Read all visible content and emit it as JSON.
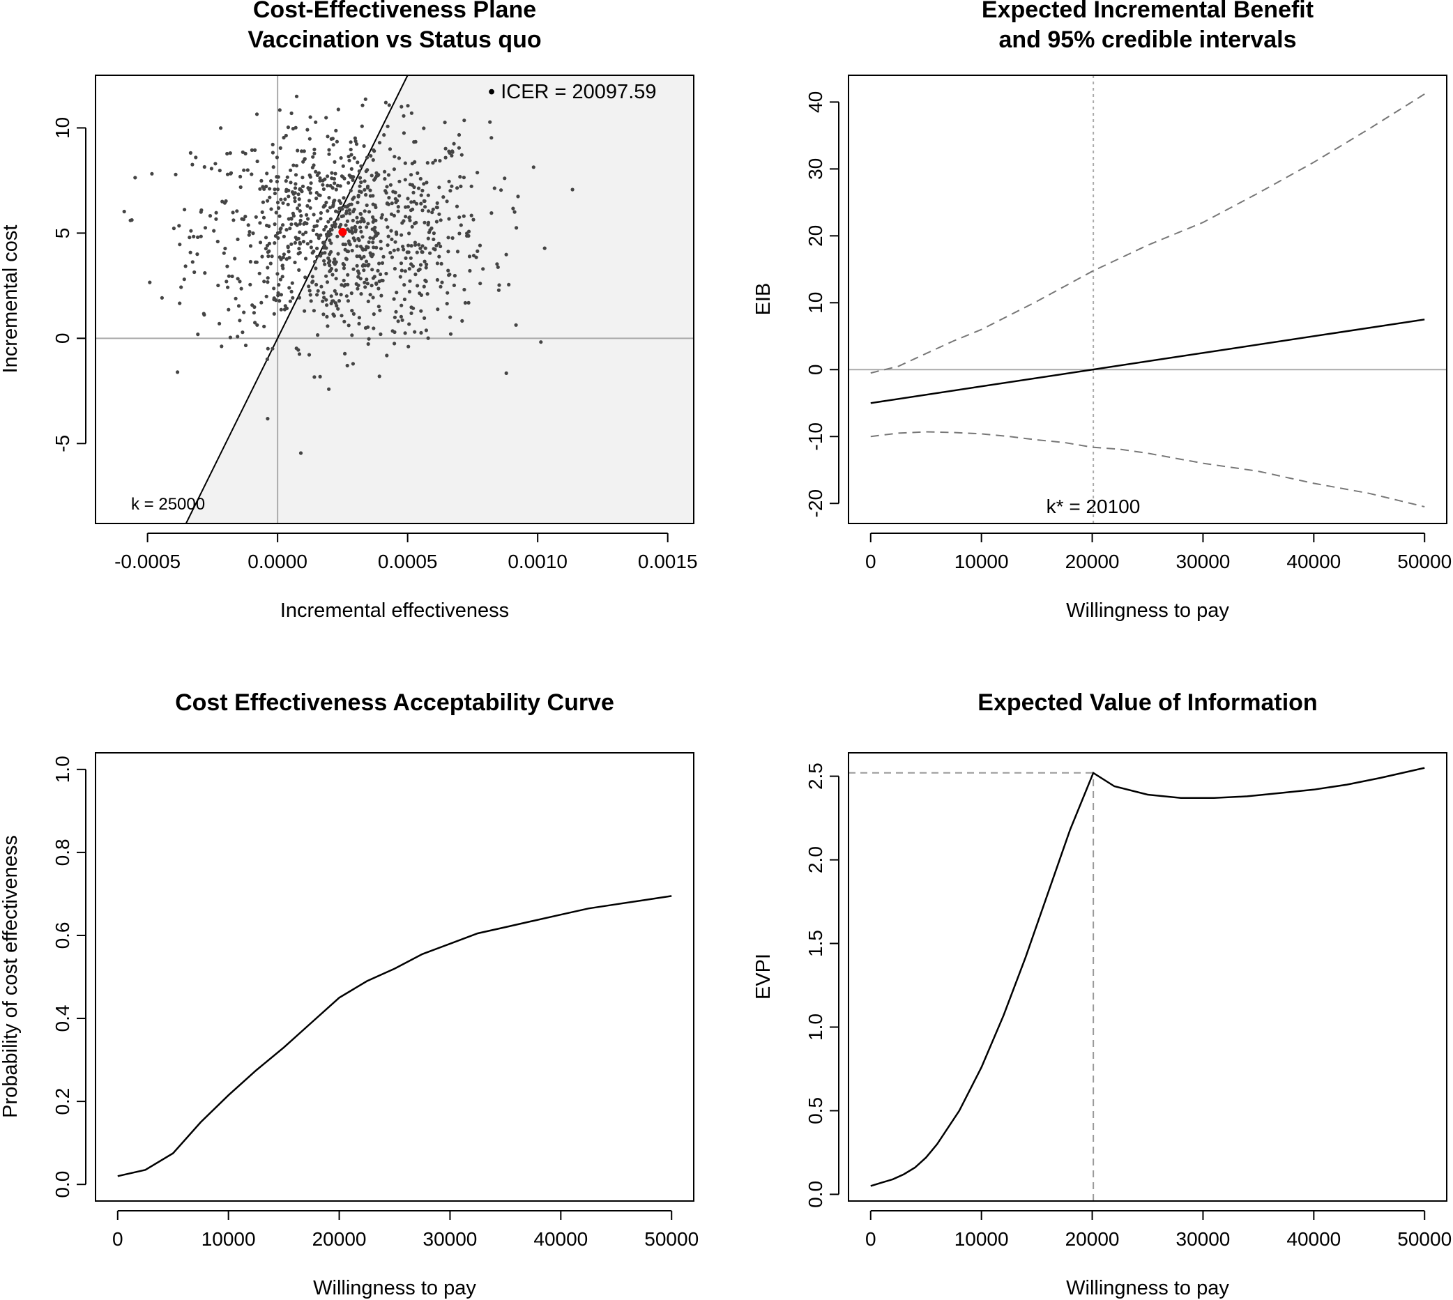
{
  "chart_data": [
    {
      "type": "scatter",
      "title": "Cost-Effectiveness Plane",
      "subtitle": "Vaccination vs Status quo",
      "xlabel": "Incremental effectiveness",
      "ylabel": "Incremental cost",
      "xlim": [
        -0.0007,
        0.0016
      ],
      "ylim": [
        -8.8,
        12.5
      ],
      "xticks": [
        -0.0005,
        0.0,
        0.0005,
        0.001,
        0.0015
      ],
      "xtick_labels": [
        "-0.0005",
        "0.0000",
        "0.0005",
        "0.0010",
        "0.0015"
      ],
      "yticks": [
        -5,
        0,
        5,
        10
      ],
      "ytick_labels": [
        "-5",
        "0",
        "5",
        "10"
      ],
      "willingness_to_pay": 25000,
      "k_label": "k = 25000",
      "icer": {
        "x": 0.00025,
        "y": 5.05,
        "label": "• ICER = 20097.59",
        "color": "#ff0000"
      },
      "points": {
        "n": 1000,
        "center": [
          0.00025,
          5.0
        ],
        "sd": [
          0.00028,
          2.6
        ],
        "color": "#444444"
      },
      "grid": false,
      "acceptability_region_color": "#f2f2f2"
    },
    {
      "type": "line",
      "title": "Expected Incremental Benefit",
      "subtitle": "and 95% credible intervals",
      "xlabel": "Willingness to pay",
      "ylabel": "EIB",
      "xlim": [
        -2000,
        52000
      ],
      "ylim": [
        -23,
        44
      ],
      "xticks": [
        0,
        10000,
        20000,
        30000,
        40000,
        50000
      ],
      "yticks": [
        -20,
        -10,
        0,
        10,
        20,
        30,
        40
      ],
      "break_even": 20100,
      "k_label": "k* = 20100",
      "series": [
        {
          "role": "mean",
          "x": [
            0,
            50000
          ],
          "y": [
            -5.0,
            7.5
          ],
          "style": "solid",
          "color": "#000000"
        },
        {
          "role": "upper",
          "x": [
            0,
            2500,
            5000,
            7500,
            10000,
            15000,
            20000,
            25000,
            30000,
            35000,
            40000,
            45000,
            50000
          ],
          "y": [
            -0.5,
            0.5,
            2.4,
            4.3,
            6.0,
            10.2,
            14.7,
            18.6,
            22.0,
            26.4,
            31.0,
            36.0,
            41.2
          ],
          "style": "dashed",
          "color": "#777777"
        },
        {
          "role": "lower",
          "x": [
            0,
            2500,
            5000,
            7500,
            10000,
            12500,
            15000,
            17500,
            20000,
            22500,
            25000,
            30000,
            35000,
            40000,
            45000,
            50000
          ],
          "y": [
            -10.0,
            -9.5,
            -9.3,
            -9.4,
            -9.6,
            -10.0,
            -10.5,
            -10.9,
            -11.6,
            -11.9,
            -12.5,
            -14.0,
            -15.2,
            -17.0,
            -18.5,
            -20.5
          ],
          "style": "dashed",
          "color": "#777777"
        }
      ],
      "grid": false
    },
    {
      "type": "line",
      "title": "Cost Effectiveness Acceptability Curve",
      "xlabel": "Willingness to pay",
      "ylabel": "Probability of cost effectiveness",
      "xlim": [
        -2000,
        52000
      ],
      "ylim": [
        -0.04,
        1.04
      ],
      "xticks": [
        0,
        10000,
        20000,
        30000,
        40000,
        50000
      ],
      "yticks": [
        0.0,
        0.2,
        0.4,
        0.6,
        0.8,
        1.0
      ],
      "ytick_labels": [
        "0.0",
        "0.2",
        "0.4",
        "0.6",
        "0.8",
        "1.0"
      ],
      "series": [
        {
          "x": [
            0,
            2500,
            5000,
            7500,
            10000,
            12500,
            15000,
            17500,
            20000,
            22500,
            25000,
            27500,
            30000,
            32500,
            35000,
            37500,
            40000,
            42500,
            45000,
            47500,
            50000
          ],
          "y": [
            0.02,
            0.035,
            0.075,
            0.15,
            0.215,
            0.275,
            0.33,
            0.39,
            0.45,
            0.49,
            0.52,
            0.555,
            0.58,
            0.605,
            0.62,
            0.635,
            0.65,
            0.665,
            0.675,
            0.685,
            0.695
          ],
          "style": "solid",
          "color": "#000000"
        }
      ],
      "grid": false
    },
    {
      "type": "line",
      "title": "Expected Value of Information",
      "xlabel": "Willingness to pay",
      "ylabel": "EVPI",
      "xlim": [
        -2000,
        52000
      ],
      "ylim": [
        -0.04,
        2.64
      ],
      "xticks": [
        0,
        10000,
        20000,
        30000,
        40000,
        50000
      ],
      "yticks": [
        0.0,
        0.5,
        1.0,
        1.5,
        2.0,
        2.5
      ],
      "ytick_labels": [
        "0.0",
        "0.5",
        "1.0",
        "1.5",
        "2.0",
        "2.5"
      ],
      "break_even": 20100,
      "max_evpi_at_break_even": 2.52,
      "series": [
        {
          "x": [
            0,
            1000,
            2000,
            3000,
            4000,
            5000,
            6000,
            8000,
            10000,
            12000,
            14000,
            16000,
            18000,
            20100,
            22000,
            25000,
            28000,
            31000,
            34000,
            37000,
            40000,
            43000,
            46000,
            50000
          ],
          "y": [
            0.05,
            0.07,
            0.09,
            0.12,
            0.16,
            0.22,
            0.3,
            0.5,
            0.76,
            1.07,
            1.42,
            1.8,
            2.18,
            2.52,
            2.44,
            2.39,
            2.37,
            2.37,
            2.38,
            2.4,
            2.42,
            2.45,
            2.49,
            2.55
          ],
          "style": "solid",
          "color": "#000000"
        }
      ],
      "grid": false
    }
  ]
}
